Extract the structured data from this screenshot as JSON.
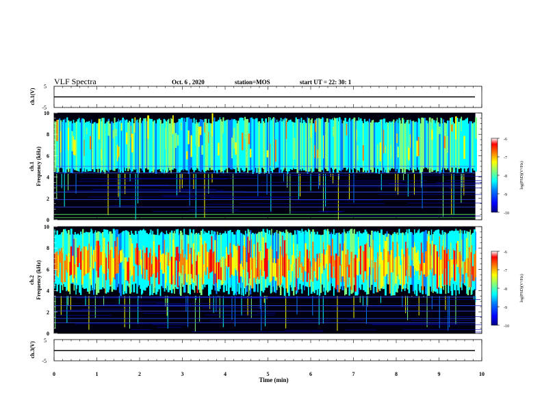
{
  "header": {
    "title": "VLF Spectra",
    "date": "Oct. 6  , 2020",
    "station": "station=MOS",
    "start": "start  UT  =   22: 30: 1"
  },
  "chart_data": [
    {
      "type": "line",
      "id": "ch1-waveform",
      "ylabel": "ch.1(V)",
      "ylim": [
        -5,
        5
      ],
      "y_ticks": [
        "5",
        "-5"
      ],
      "xlim": [
        0,
        10
      ],
      "series": [
        {
          "x": [
            0,
            9.85
          ],
          "y": [
            0,
            0
          ]
        }
      ]
    },
    {
      "type": "heatmap",
      "id": "ch1-spectrogram",
      "ylabel": "ch.1\nFrequency  (kHz)",
      "ylim": [
        0,
        10
      ],
      "y_ticks": [
        "0",
        "2",
        "4",
        "6",
        "8",
        "10"
      ],
      "xlim": [
        0,
        10
      ],
      "data_extent_min": 9.85,
      "band_kHz": [
        4.3,
        9.6
      ],
      "colorbar": {
        "label": "log(PSD)(V²/Hz)",
        "range": [
          -10,
          -6
        ],
        "ticks": [
          "-6",
          "-7",
          "-8",
          "-9",
          "-10"
        ]
      }
    },
    {
      "type": "heatmap",
      "id": "ch2-spectrogram",
      "ylabel": "ch.2\nFrequency  (kHz)",
      "ylim": [
        0,
        10
      ],
      "y_ticks": [
        "0",
        "2",
        "4",
        "6",
        "8",
        "10"
      ],
      "xlim": [
        0,
        10
      ],
      "data_extent_min": 9.85,
      "band_kHz": [
        3.5,
        9.8
      ],
      "colorbar": {
        "label": "log(PSD)(V²/Hz)",
        "range": [
          -10,
          -6
        ],
        "ticks": [
          "-6",
          "-7",
          "-8",
          "-9",
          "-10"
        ]
      }
    },
    {
      "type": "line",
      "id": "ch3-waveform",
      "ylabel": "ch.3(V)",
      "ylim": [
        -5,
        5
      ],
      "y_ticks": [
        "5",
        "-5"
      ],
      "xlim": [
        0,
        10
      ],
      "xlabel": "Time  (min)",
      "x_ticks": [
        "0",
        "1",
        "2",
        "3",
        "4",
        "5",
        "6",
        "7",
        "8",
        "9",
        "10"
      ],
      "series": [
        {
          "x": [
            0,
            9.85
          ],
          "y": [
            0,
            0
          ]
        }
      ]
    }
  ],
  "colors": {
    "background": "#000000",
    "colormap": [
      "#00007f",
      "#0000ff",
      "#0080ff",
      "#00ffff",
      "#80ff80",
      "#ffff00",
      "#ff8000",
      "#ff0000",
      "#ffffff"
    ]
  }
}
